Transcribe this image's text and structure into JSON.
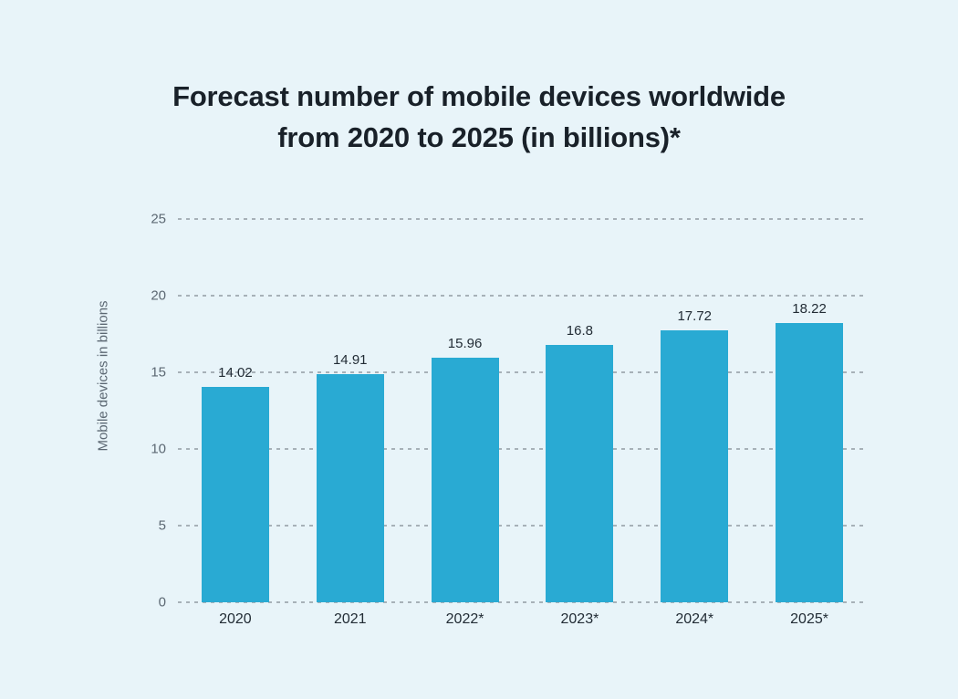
{
  "page": {
    "background_color": "#E8F4F9"
  },
  "chart_data": {
    "type": "bar",
    "title": "Forecast number of mobile devices worldwide from 2020 to 2025 (in billions)*",
    "title_lines": [
      "Forecast number of mobile devices worldwide",
      "from 2020 to 2025 (in billions)*"
    ],
    "xlabel": "",
    "ylabel": "Mobile devices in billions",
    "categories": [
      "2020",
      "2021",
      "2022*",
      "2023*",
      "2024*",
      "2025*"
    ],
    "values": [
      14.02,
      14.91,
      15.96,
      16.8,
      17.72,
      18.22
    ],
    "value_labels": [
      "14.02",
      "14.91",
      "15.96",
      "16.8",
      "17.72",
      "18.22"
    ],
    "yticks": [
      0,
      5,
      10,
      15,
      20,
      25
    ],
    "ylim": [
      0,
      25
    ],
    "grid": "horizontal-dashed",
    "legend": "none",
    "colors": {
      "bar_fill": "#29AAD3",
      "title_text": "#192129",
      "tick_text": "#5C6873",
      "label_text": "#222C35",
      "gridline": "#A7B1B8",
      "background": "#E8F4F9"
    }
  }
}
